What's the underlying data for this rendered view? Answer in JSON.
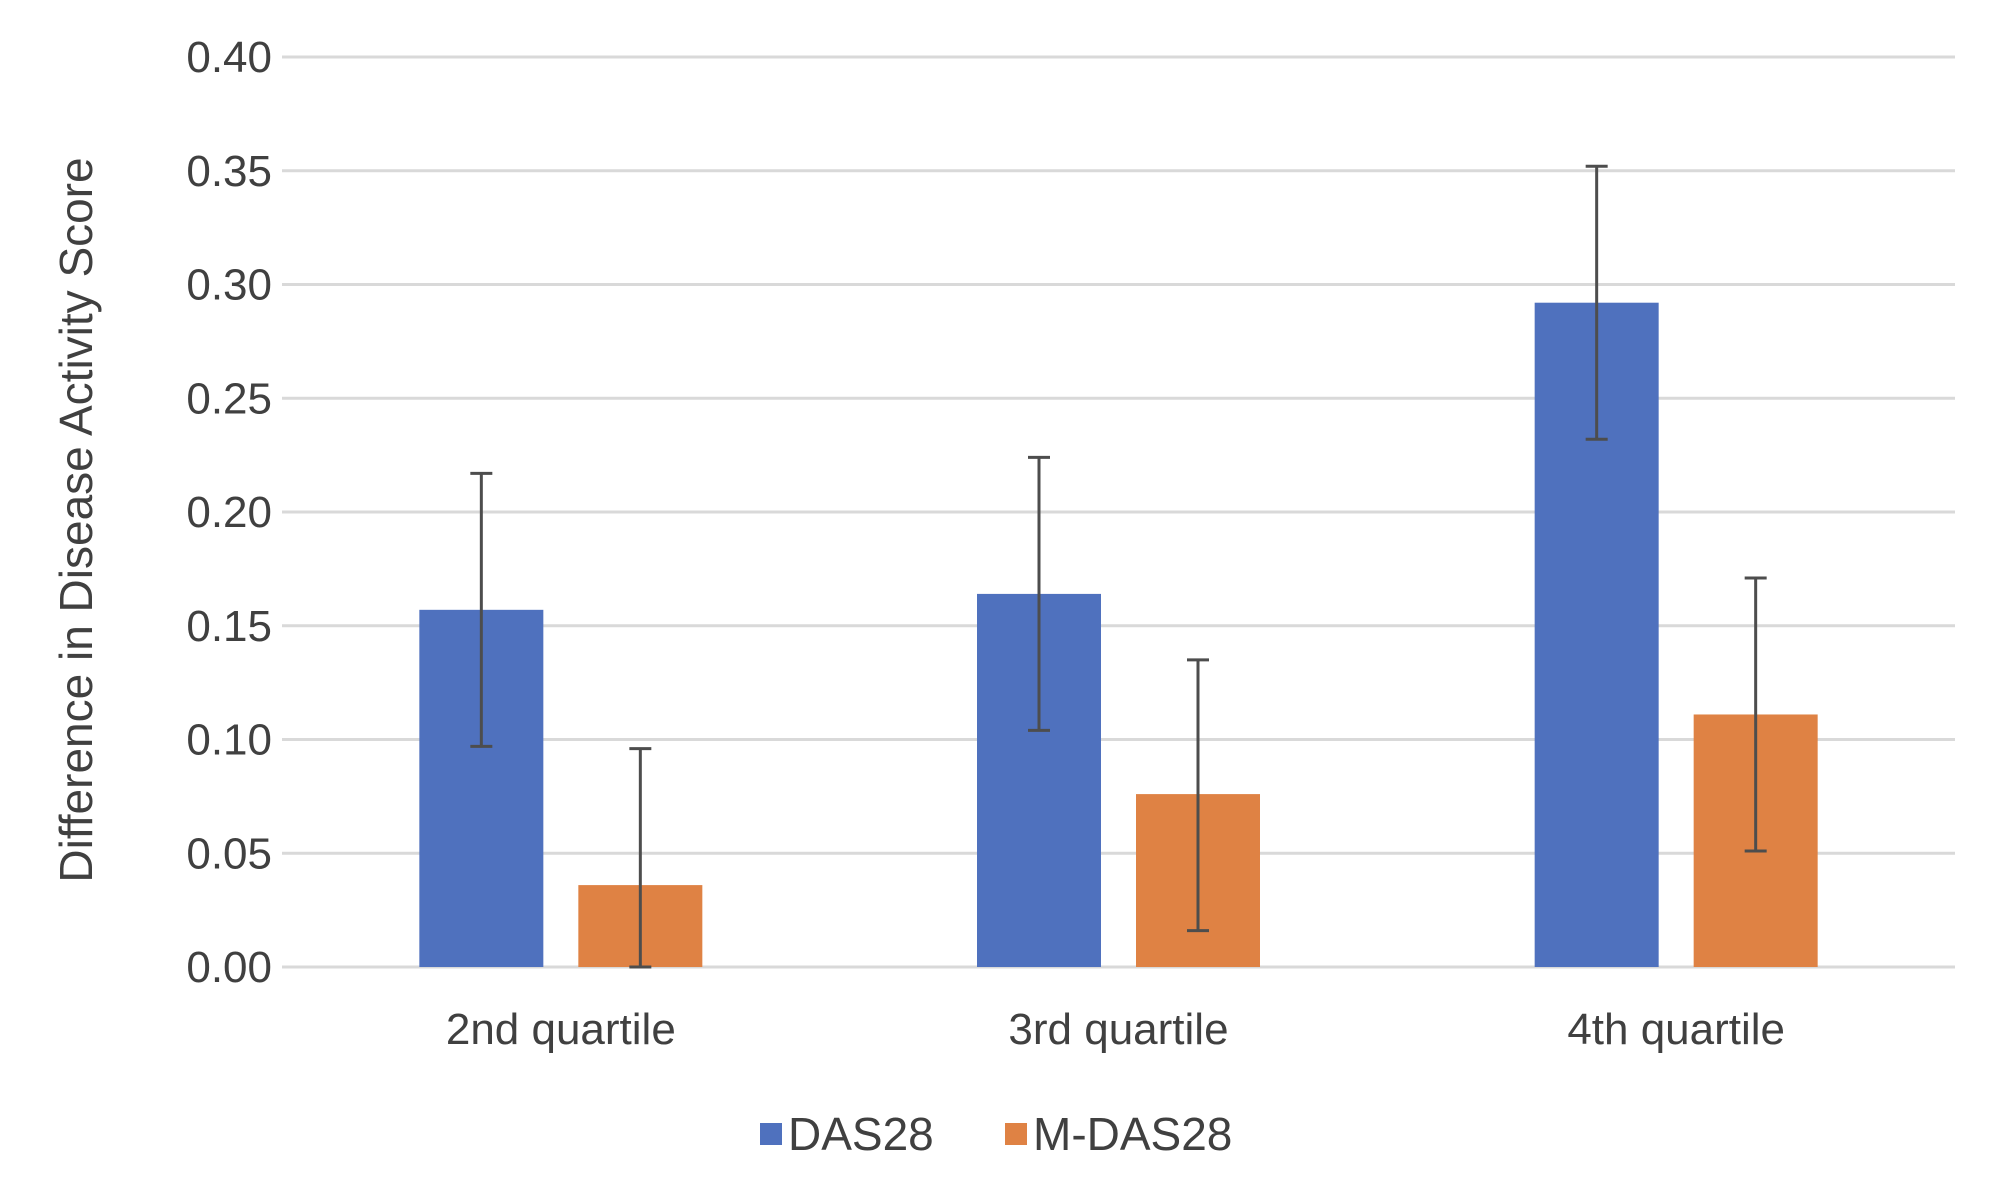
{
  "chart_data": {
    "type": "bar",
    "title": "",
    "xlabel": "",
    "ylabel": "Difference in Disease Activity Score",
    "ylim": [
      0,
      0.4
    ],
    "yticks": [
      "0.00",
      "0.05",
      "0.10",
      "0.15",
      "0.20",
      "0.25",
      "0.30",
      "0.35",
      "0.40"
    ],
    "ytick_values": [
      0,
      0.05,
      0.1,
      0.15,
      0.2,
      0.25,
      0.3,
      0.35,
      0.4
    ],
    "grid": true,
    "legend_position": "bottom-center",
    "categories": [
      "2nd quartile",
      "3rd quartile",
      "4th quartile"
    ],
    "series": [
      {
        "name": "DAS28",
        "color": "#4f71be",
        "values": [
          0.157,
          0.164,
          0.292
        ],
        "error_low": [
          0.097,
          0.104,
          0.232
        ],
        "error_high": [
          0.217,
          0.224,
          0.352
        ]
      },
      {
        "name": "M-DAS28",
        "color": "#df8244",
        "values": [
          0.036,
          0.076,
          0.111
        ],
        "error_low": [
          0.0,
          0.016,
          0.051
        ],
        "error_high": [
          0.096,
          0.135,
          0.171
        ]
      }
    ]
  }
}
